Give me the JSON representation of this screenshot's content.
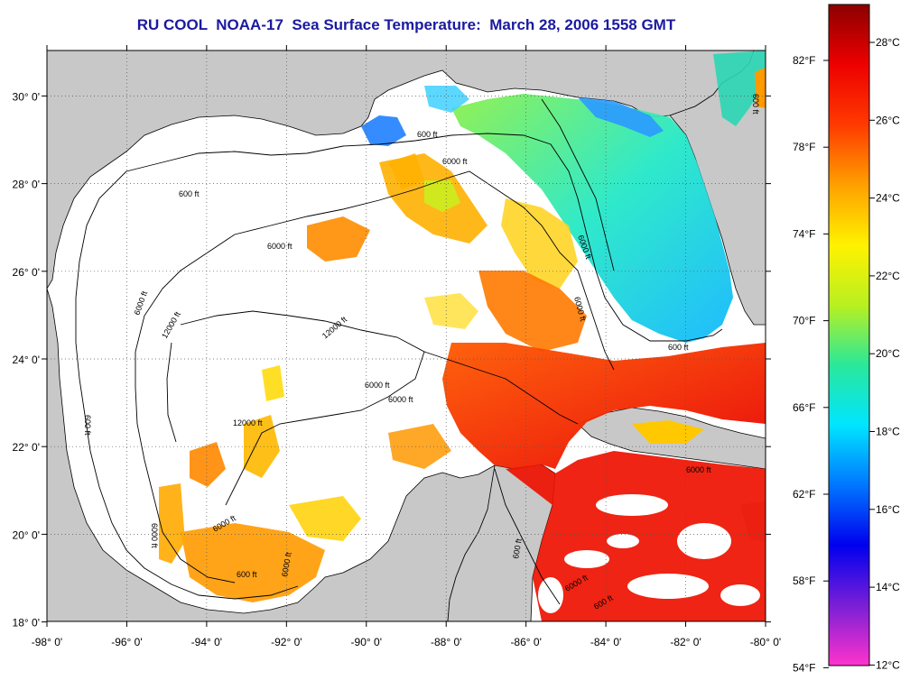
{
  "title": "RU COOL  NOAA-17  Sea Surface Temperature:  March 28, 2006 1558 GMT",
  "lon_ticks": [
    "-98° 0'",
    "-96° 0'",
    "-94° 0'",
    "-92° 0'",
    "-90° 0'",
    "-88° 0'",
    "-86° 0'",
    "-84° 0'",
    "-82° 0'",
    "-80° 0'"
  ],
  "lat_ticks": [
    "30° 0'",
    "28° 0'",
    "26° 0'",
    "24° 0'",
    "22° 0'",
    "20° 0'",
    "18° 0'"
  ],
  "colorbar": {
    "celsius_labels": [
      "28°C",
      "26°C",
      "24°C",
      "22°C",
      "20°C",
      "18°C",
      "16°C",
      "14°C",
      "12°C"
    ],
    "fahrenheit_labels": [
      "82°F",
      "78°F",
      "74°F",
      "70°F",
      "66°F",
      "62°F",
      "58°F",
      "54°F"
    ],
    "stops": [
      "#ff33cc",
      "#7a1fd6",
      "#0000ee",
      "#0077ff",
      "#00e5ff",
      "#2ae89a",
      "#b8f020",
      "#fff200",
      "#ffa000",
      "#ff3a00",
      "#ee0000",
      "#8b0000"
    ]
  },
  "contour_labels": [
    "600 ft",
    "6000 ft",
    "12000 ft",
    "600 ft",
    "6000 ft",
    "6000 ft",
    "12000 ft",
    "6000 ft",
    "12000 ft",
    "6000 ft",
    "600 ft",
    "6000 ft",
    "6000 ft",
    "6000 ft",
    "6000 ft",
    "600 ft",
    "600 ft",
    "6000 ft",
    "600 ft",
    "6000 ft",
    "600 ft",
    "6000 ft",
    "600 ft"
  ],
  "colors": {
    "land": "#c8c8c8",
    "title": "#1a1aa0",
    "cloud_free_ocean_white": "#ffffff"
  }
}
